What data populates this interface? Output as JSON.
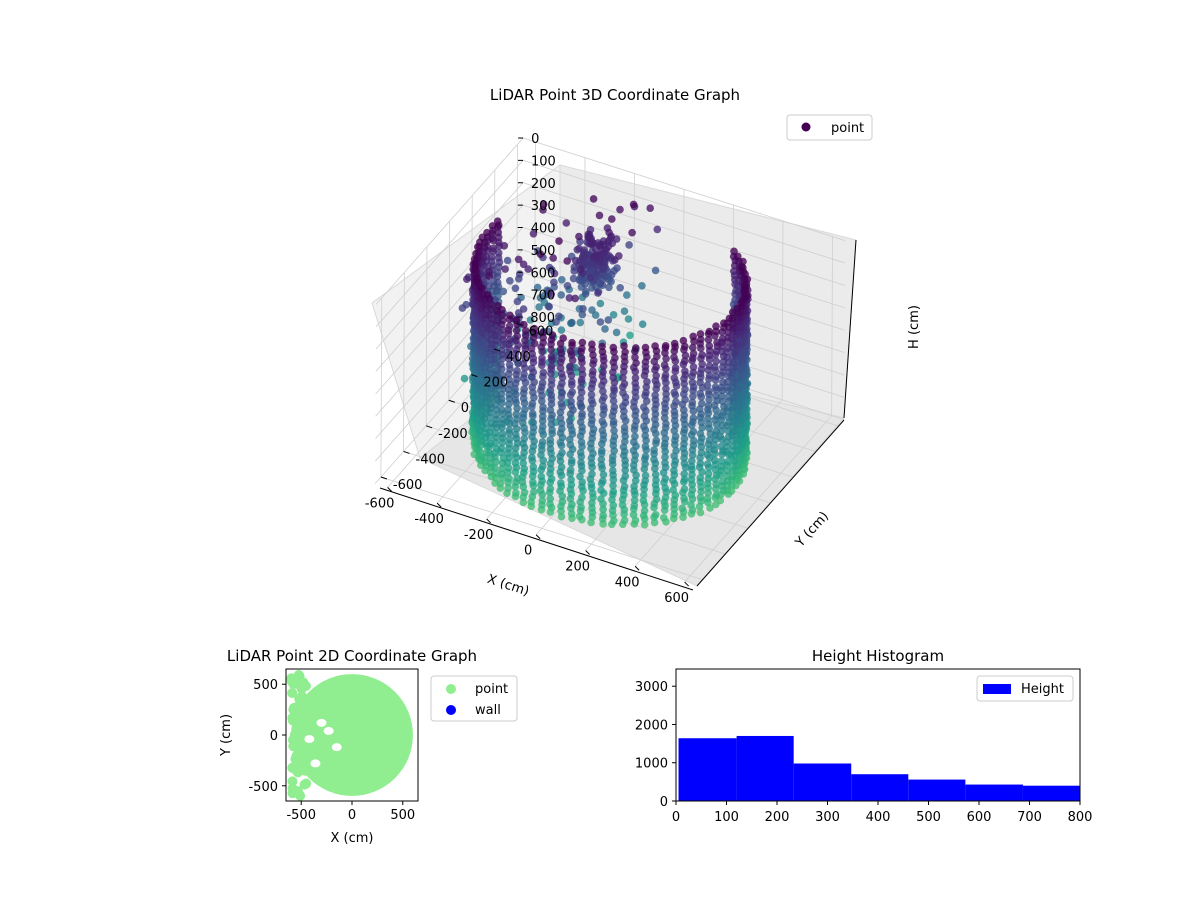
{
  "chart_data": [
    {
      "type": "scatter",
      "projection": "3d",
      "title": "LiDAR Point 3D Coordinate Graph",
      "xlabel": "X (cm)",
      "ylabel": "Y (cm)",
      "zlabel": "H (cm)",
      "xlim": [
        -650,
        650
      ],
      "ylim": [
        -650,
        650
      ],
      "zlim": [
        800,
        0
      ],
      "zaxis_inverted": true,
      "x_ticks": [
        "-600",
        "-400",
        "-200",
        "0",
        "200",
        "400",
        "600"
      ],
      "y_ticks": [
        "-600",
        "-400",
        "-200",
        "0",
        "200",
        "400",
        "600"
      ],
      "z_ticks": [
        "0",
        "100",
        "200",
        "300",
        "400",
        "500",
        "600",
        "700",
        "800"
      ],
      "colormap": "viridis",
      "legend": {
        "entries": [
          "point"
        ],
        "placement": "upper-right"
      },
      "legend_color": "#440154",
      "structure": {
        "wall_ring_radius": 500,
        "wall_ring_start_deg": 170,
        "wall_ring_end_deg": 410,
        "wall_height": [
          0,
          800
        ],
        "cluster_center": [
          -200,
          300,
          200
        ]
      },
      "grid": true
    },
    {
      "type": "scatter",
      "title": "LiDAR Point 2D Coordinate Graph",
      "xlabel": "X (cm)",
      "ylabel": "Y (cm)",
      "xlim": [
        -650,
        650
      ],
      "ylim": [
        -650,
        650
      ],
      "x_ticks": [
        "-500",
        "0",
        "500"
      ],
      "y_ticks": [
        "500",
        "0",
        "-500"
      ],
      "series": [
        {
          "name": "point",
          "color": "#90ee90"
        },
        {
          "name": "wall",
          "color": "#0000ff"
        }
      ],
      "legend": {
        "placement": "outside-right"
      },
      "grid": false
    },
    {
      "type": "bar",
      "subtype": "histogram",
      "title": "Height Histogram",
      "xlim": [
        0,
        800
      ],
      "ylim": [
        0,
        3450
      ],
      "x_ticks": [
        "0",
        "100",
        "200",
        "300",
        "400",
        "500",
        "600",
        "700",
        "800"
      ],
      "y_ticks": [
        "0",
        "1000",
        "2000",
        "3000"
      ],
      "bins": [
        {
          "x0": 5,
          "x1": 120,
          "value": 1640
        },
        {
          "x0": 120,
          "x1": 233,
          "value": 1700
        },
        {
          "x0": 233,
          "x1": 347,
          "value": 980
        },
        {
          "x0": 347,
          "x1": 460,
          "value": 700
        },
        {
          "x0": 460,
          "x1": 573,
          "value": 560
        },
        {
          "x0": 573,
          "x1": 687,
          "value": 430
        },
        {
          "x0": 687,
          "x1": 800,
          "value": 400
        }
      ],
      "series": [
        {
          "name": "Height",
          "color": "#0000ff"
        }
      ],
      "legend": {
        "placement": "upper-right"
      },
      "grid": false
    }
  ]
}
